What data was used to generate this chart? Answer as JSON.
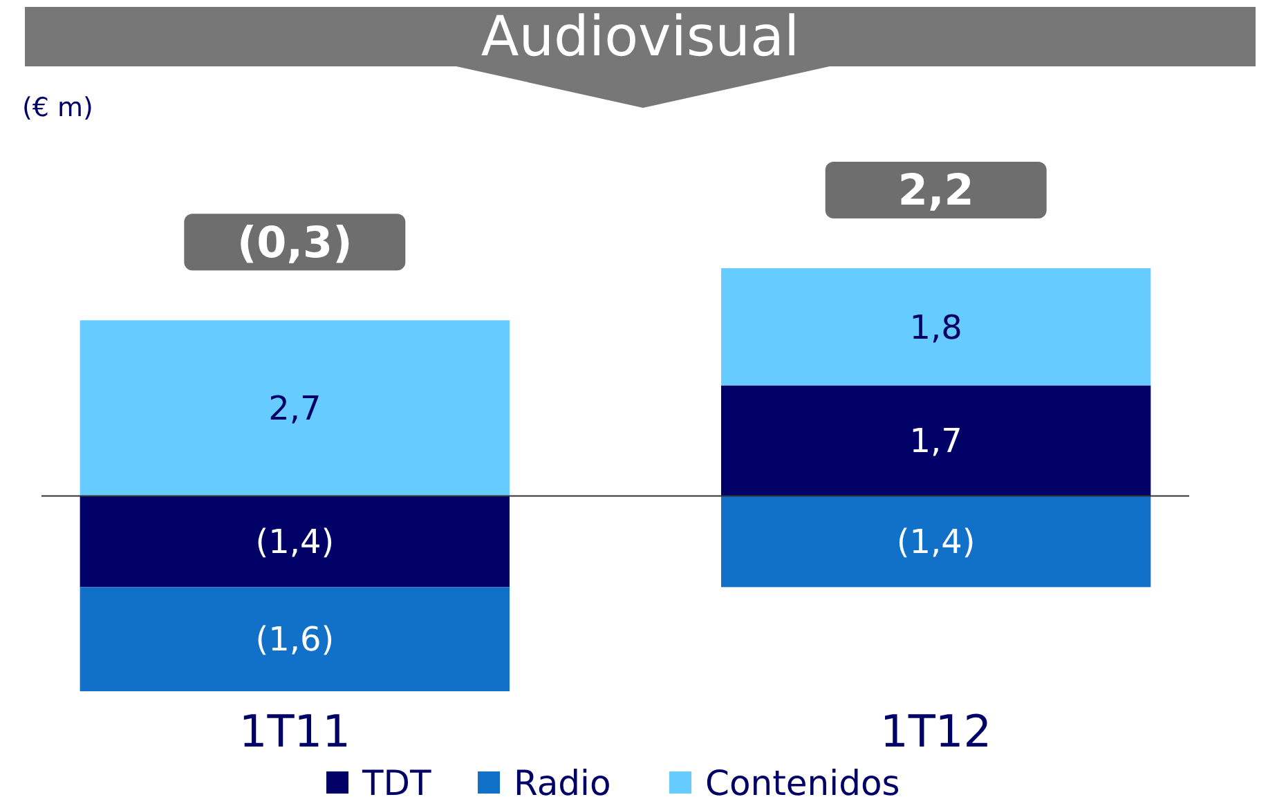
{
  "chart_data": {
    "type": "bar",
    "title": "Audiovisual",
    "annotations": [
      "(€ m)"
    ],
    "categories": [
      "1T11",
      "1T12"
    ],
    "stacked": true,
    "series": [
      {
        "name": "TDT",
        "color": "#000066",
        "values": [
          -1.4,
          1.7
        ],
        "value_labels": [
          "(1,4)",
          "1,7"
        ]
      },
      {
        "name": "Radio",
        "color": "#1170c8",
        "values": [
          -1.6,
          -1.4
        ],
        "value_labels": [
          "(1,6)",
          "(1,4)"
        ]
      },
      {
        "name": "Contenidos",
        "color": "#66ccff",
        "values": [
          2.7,
          1.8
        ],
        "value_labels": [
          "2,7",
          "1,8"
        ]
      }
    ],
    "totals": [
      "(0,3)",
      "2,2"
    ],
    "legend": "bottom"
  }
}
